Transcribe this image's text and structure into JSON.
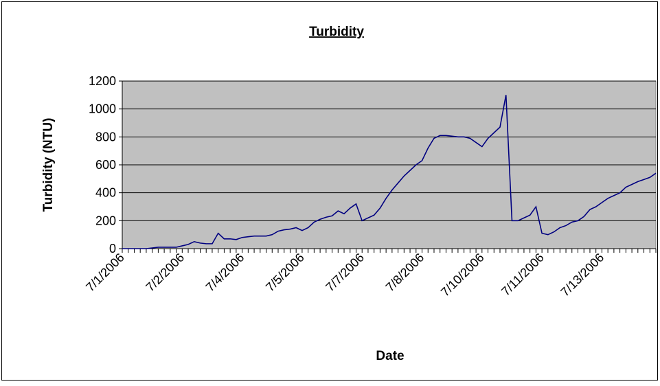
{
  "chart_data": {
    "type": "line",
    "title": "Turbidity",
    "x_label": "Date",
    "y_label": "Turbidity (NTU)",
    "categories": [
      "7/1/2006",
      null,
      null,
      null,
      null,
      null,
      null,
      null,
      null,
      null,
      "7/2/2006",
      null,
      null,
      null,
      null,
      null,
      null,
      null,
      null,
      null,
      "7/4/2006",
      null,
      null,
      null,
      null,
      null,
      null,
      null,
      null,
      null,
      "7/5/2006",
      null,
      null,
      null,
      null,
      null,
      null,
      null,
      null,
      null,
      "7/7/2006",
      null,
      null,
      null,
      null,
      null,
      null,
      null,
      null,
      null,
      "7/8/2006",
      null,
      null,
      null,
      null,
      null,
      null,
      null,
      null,
      null,
      "7/10/2006",
      null,
      null,
      null,
      null,
      null,
      null,
      null,
      null,
      null,
      "7/11/2006",
      null,
      null,
      null,
      null,
      null,
      null,
      null,
      null,
      null,
      "7/13/2006",
      null,
      null,
      null,
      null,
      null,
      null,
      null,
      null,
      null
    ],
    "series": [
      {
        "name": "Turbidity",
        "color": "#000080",
        "values": [
          0,
          0,
          0,
          0,
          0,
          5,
          10,
          10,
          10,
          10,
          20,
          30,
          50,
          40,
          35,
          35,
          110,
          70,
          70,
          65,
          80,
          85,
          90,
          90,
          90,
          100,
          125,
          135,
          140,
          150,
          130,
          150,
          190,
          210,
          225,
          235,
          270,
          250,
          290,
          320,
          200,
          220,
          240,
          290,
          360,
          420,
          470,
          520,
          560,
          600,
          630,
          720,
          790,
          810,
          810,
          805,
          800,
          800,
          790,
          760,
          730,
          790,
          830,
          870,
          1100,
          200,
          200,
          220,
          240,
          300,
          110,
          100,
          120,
          150,
          165,
          190,
          200,
          230,
          280,
          300,
          330,
          360,
          380,
          400,
          440,
          460,
          480,
          495,
          510,
          540
        ]
      }
    ],
    "ylim": [
      0,
      1200
    ],
    "yticks": [
      0,
      200,
      400,
      600,
      800,
      1000,
      1200
    ],
    "grid": true,
    "plot_background": "#c0c0c0"
  }
}
